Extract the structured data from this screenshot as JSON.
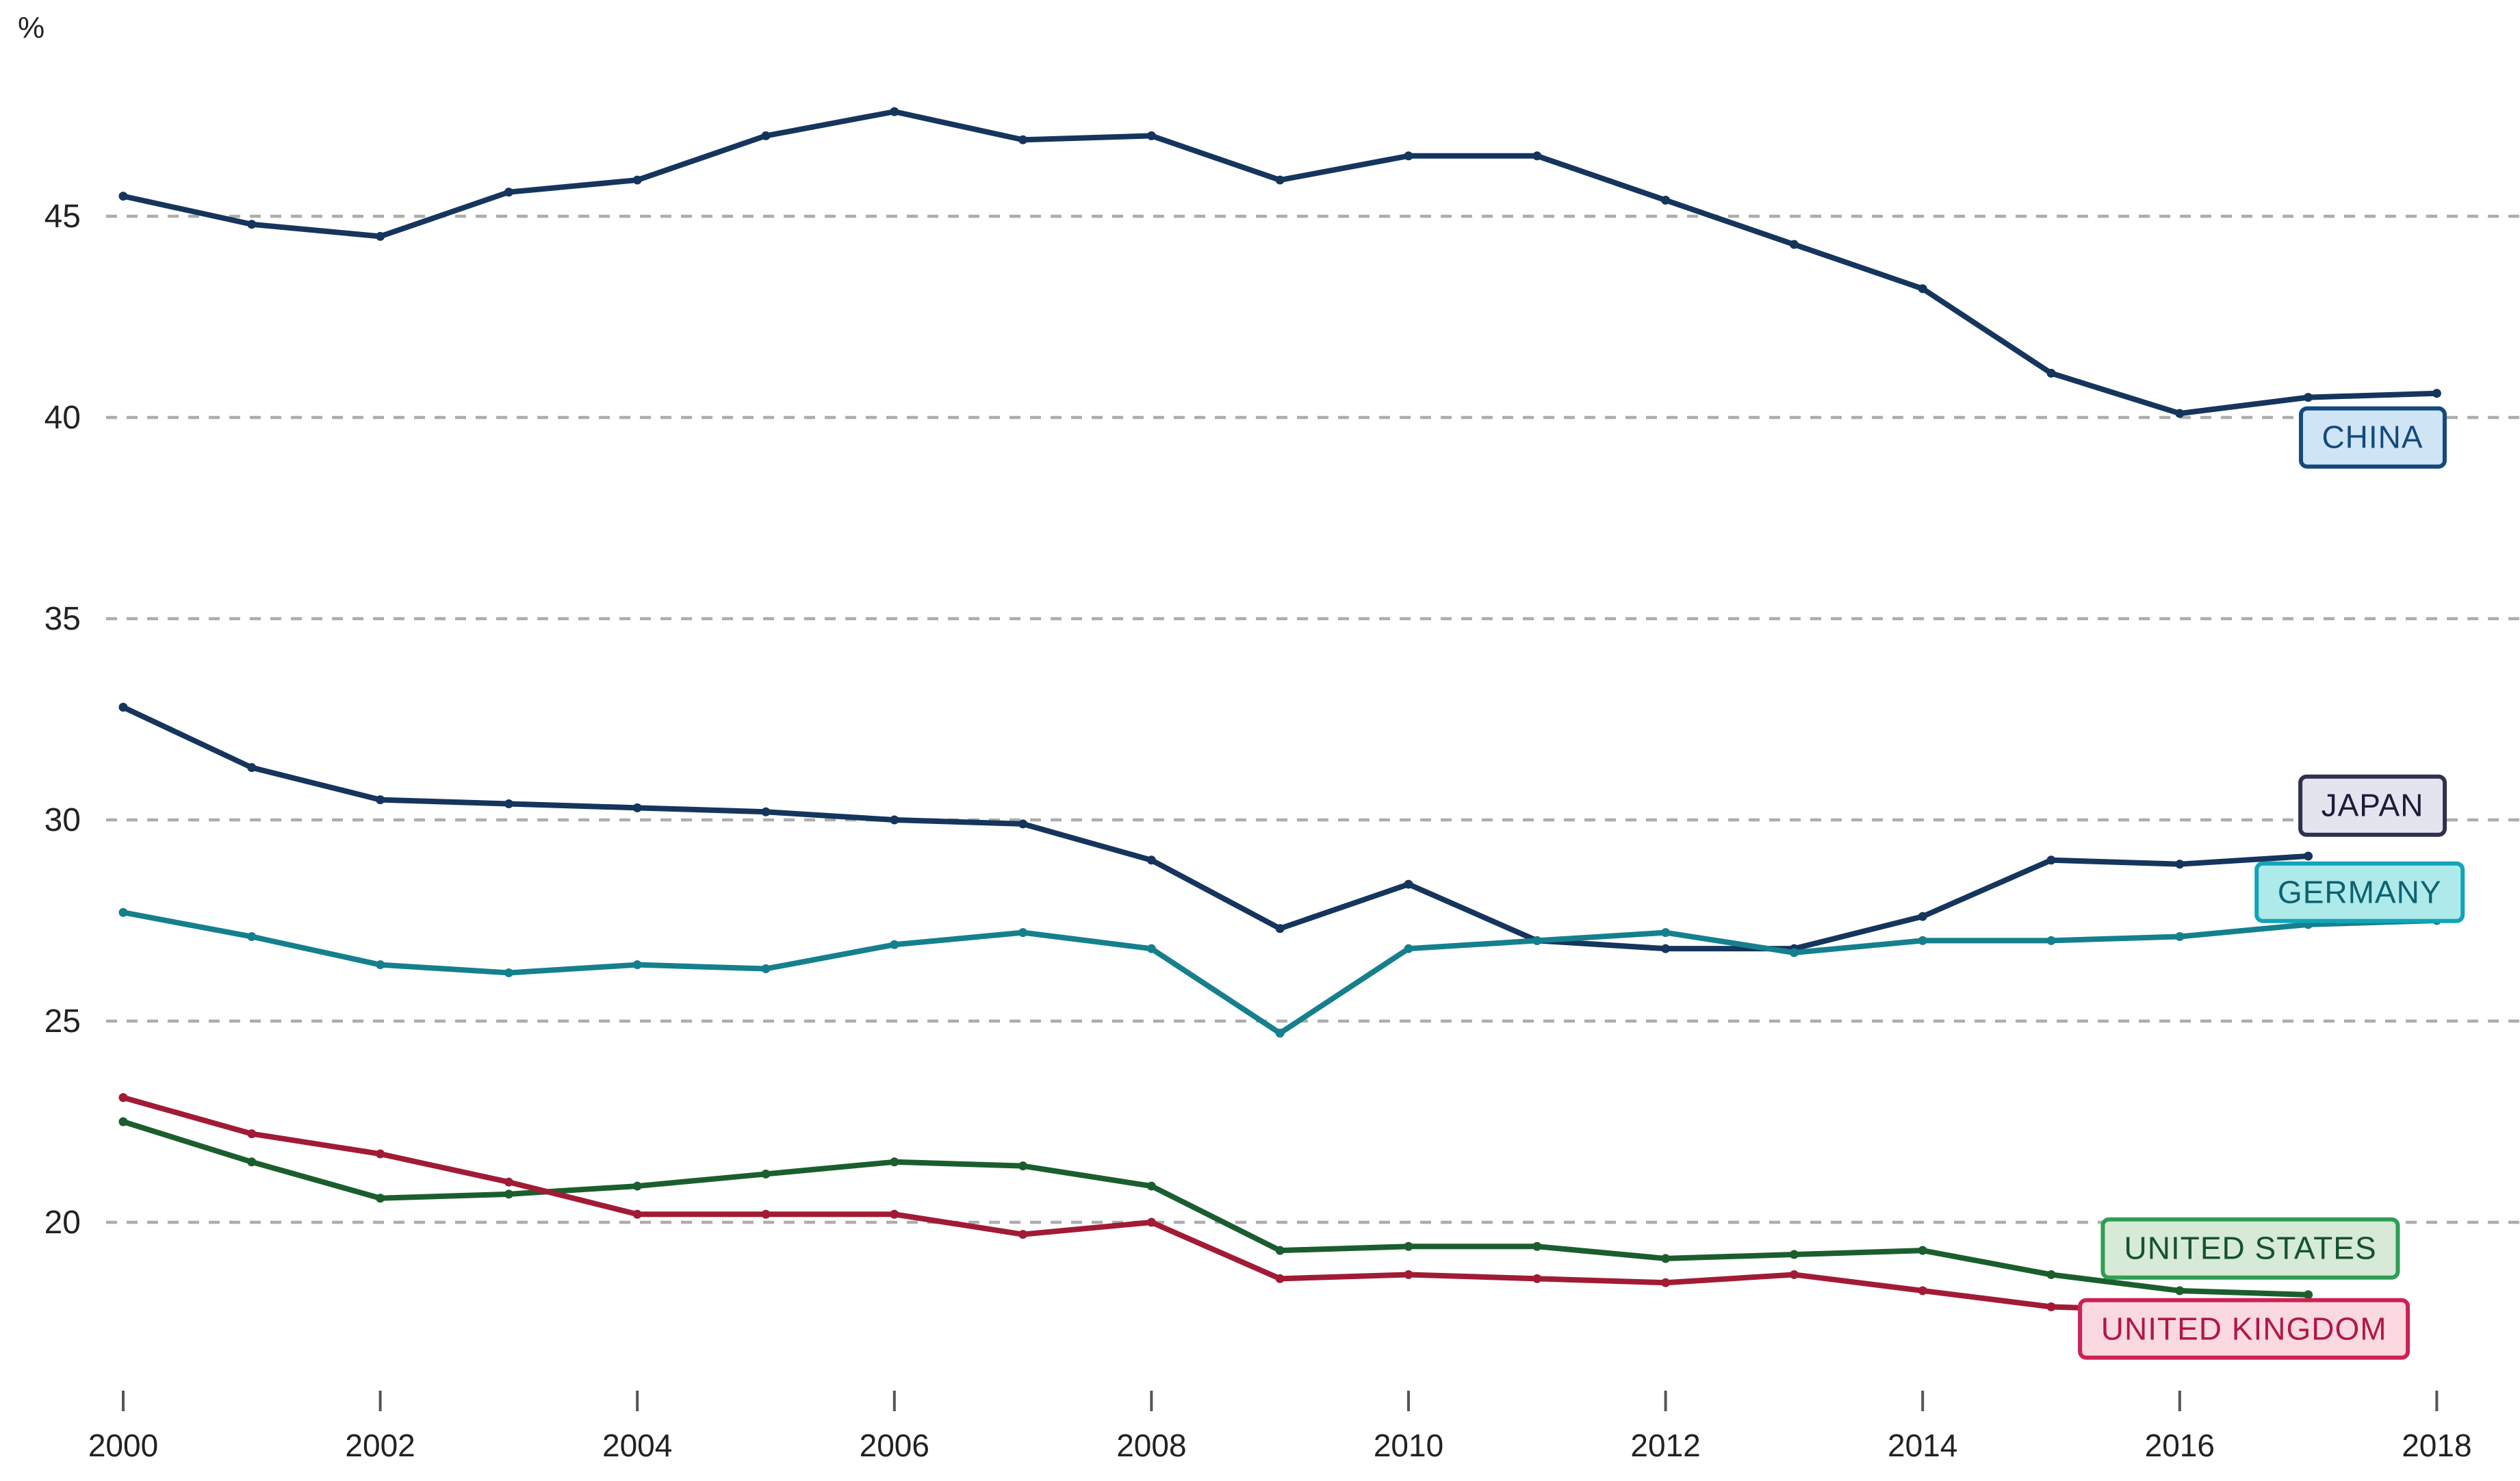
{
  "page": {
    "background": "#ffffff"
  },
  "chart_data": {
    "type": "line",
    "title": "",
    "xlabel": "",
    "ylabel": "%",
    "legend_position": "end-of-line-labels",
    "grid": "horizontal-dashed",
    "grid_color": "#adadad",
    "axis_text_color": "#222222",
    "tick_color": "#555555",
    "xlim": [
      2000,
      2018
    ],
    "ylim": [
      17,
      49
    ],
    "x_ticks": [
      2000,
      2002,
      2004,
      2006,
      2008,
      2010,
      2012,
      2014,
      2016,
      2018
    ],
    "y_ticks": [
      45,
      40,
      35,
      30,
      25,
      20
    ],
    "x_start": 2000,
    "series": [
      {
        "name": "China",
        "color": "#15355d",
        "x_start": 2000,
        "values": [
          45.5,
          44.8,
          44.5,
          45.6,
          45.9,
          47.0,
          47.6,
          46.9,
          47.0,
          45.9,
          46.5,
          46.5,
          45.4,
          44.3,
          43.2,
          41.1,
          40.1,
          40.5,
          40.6
        ],
        "label": {
          "text": "CHINA",
          "fill": "#cfe4f4",
          "border": "#134a7d",
          "text_color": "#134a7d",
          "anchor_year": 17.5,
          "anchor_value": 39.5
        }
      },
      {
        "name": "Japan",
        "color": "#15355d",
        "x_start": 2000,
        "values": [
          32.8,
          31.3,
          30.5,
          30.4,
          30.3,
          30.2,
          30.0,
          29.9,
          29.0,
          27.3,
          28.4,
          27.0,
          26.8,
          26.8,
          27.6,
          29.0,
          28.9,
          29.1
        ],
        "label": {
          "text": "JAPAN",
          "fill": "#e4e4ef",
          "border": "#30304f",
          "text_color": "#1c1c3a",
          "anchor_year": 17.5,
          "anchor_value": 30.35
        }
      },
      {
        "name": "Germany",
        "color": "#15808d",
        "x_start": 2000,
        "values": [
          27.7,
          27.1,
          26.4,
          26.2,
          26.4,
          26.3,
          26.9,
          27.2,
          26.8,
          24.7,
          26.8,
          27.0,
          27.2,
          26.7,
          27.0,
          27.0,
          27.1,
          27.4,
          27.5
        ],
        "label": {
          "text": "GERMANY",
          "fill": "#aeeaea",
          "border": "#12a3b8",
          "text_color": "#0d6270",
          "anchor_year": 17.4,
          "anchor_value": 28.2
        }
      },
      {
        "name": "United States",
        "color": "#1b5e2d",
        "x_start": 2000,
        "values": [
          22.5,
          21.5,
          20.6,
          20.7,
          20.9,
          21.2,
          21.5,
          21.4,
          20.9,
          19.3,
          19.4,
          19.4,
          19.1,
          19.2,
          19.3,
          18.7,
          18.3,
          18.2
        ],
        "label": {
          "text": "UNITED STATES",
          "fill": "#d7ead7",
          "border": "#2f9e54",
          "text_color": "#14532d",
          "anchor_year": 16.55,
          "anchor_value": 19.35
        }
      },
      {
        "name": "United Kingdom",
        "color": "#a11b35",
        "x_start": 2000,
        "values": [
          23.1,
          22.2,
          21.7,
          21.0,
          20.2,
          20.2,
          20.2,
          19.7,
          20.0,
          18.6,
          18.7,
          18.6,
          18.5,
          18.7,
          18.3,
          17.9,
          17.8,
          17.8
        ],
        "label": {
          "text": "UNITED KINGDOM",
          "fill": "#fad9e0",
          "border": "#cc2255",
          "text_color": "#b01845",
          "anchor_year": 16.5,
          "anchor_value": 17.35
        }
      }
    ]
  }
}
